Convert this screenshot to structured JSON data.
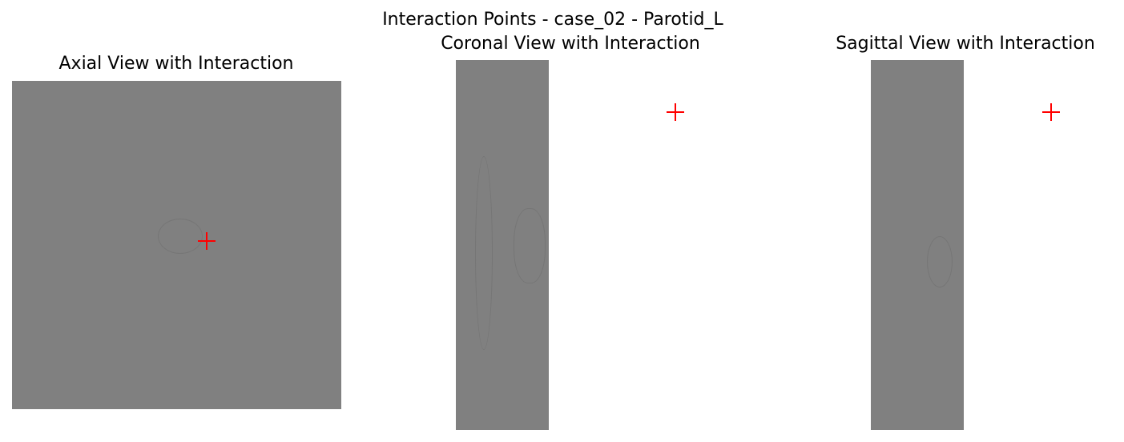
{
  "figure": {
    "title": "Interaction Points - case_02 - Parotid_L"
  },
  "views": [
    {
      "title": "Axial View with Interaction"
    },
    {
      "title": "Coronal View with Interaction"
    },
    {
      "title": "Sagittal View with Interaction"
    }
  ],
  "colors": {
    "image_gray": "#808080",
    "marker": "#ff0000",
    "background": "#ffffff"
  },
  "marker_symbol": "+"
}
